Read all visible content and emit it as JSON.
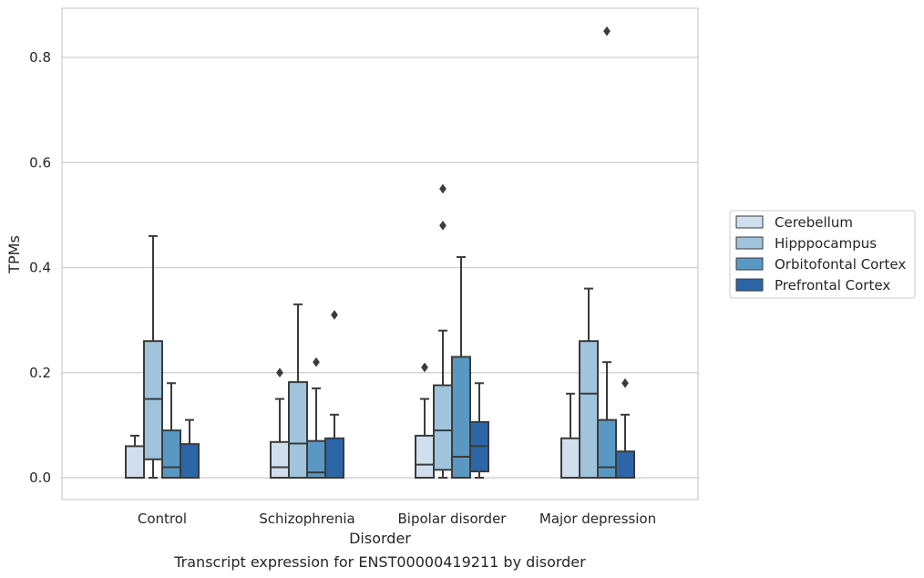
{
  "caption": "Transcript expression for ENST00000419211 by disorder",
  "chart_data": {
    "type": "box",
    "xlabel": "Disorder",
    "ylabel": "TPMs",
    "ylim": [
      -0.04,
      0.9
    ],
    "yticks": [
      0.0,
      0.2,
      0.4,
      0.6,
      0.8
    ],
    "ytick_labels": [
      "0.0",
      "0.2",
      "0.4",
      "0.6",
      "0.8"
    ],
    "grid": "horizontal",
    "legend_position": "right",
    "categories": [
      "Control",
      "Schizophrenia",
      "Bipolar disorder",
      "Major depression"
    ],
    "series": [
      {
        "name": "Cerebellum",
        "color": "#d0dfee",
        "boxes": [
          {
            "min": 0.0,
            "q1": 0.0,
            "median": 0.0,
            "q3": 0.06,
            "max": 0.08,
            "outliers": []
          },
          {
            "min": 0.0,
            "q1": 0.0,
            "median": 0.02,
            "q3": 0.068,
            "max": 0.15,
            "outliers": [
              0.2
            ]
          },
          {
            "min": 0.0,
            "q1": 0.0,
            "median": 0.025,
            "q3": 0.08,
            "max": 0.15,
            "outliers": [
              0.21
            ]
          },
          {
            "min": 0.0,
            "q1": 0.0,
            "median": 0.0,
            "q3": 0.075,
            "max": 0.16,
            "outliers": []
          }
        ]
      },
      {
        "name": "Hipppocampus",
        "color": "#9fc4dc",
        "boxes": [
          {
            "min": 0.0,
            "q1": 0.035,
            "median": 0.15,
            "q3": 0.26,
            "max": 0.46,
            "outliers": []
          },
          {
            "min": 0.0,
            "q1": 0.0,
            "median": 0.065,
            "q3": 0.182,
            "max": 0.33,
            "outliers": []
          },
          {
            "min": 0.0,
            "q1": 0.015,
            "median": 0.09,
            "q3": 0.176,
            "max": 0.28,
            "outliers": [
              0.48,
              0.55
            ]
          },
          {
            "min": 0.0,
            "q1": 0.0,
            "median": 0.16,
            "q3": 0.26,
            "max": 0.36,
            "outliers": []
          }
        ]
      },
      {
        "name": "Orbitofontal Cortex",
        "color": "#5a98c4",
        "boxes": [
          {
            "min": 0.0,
            "q1": 0.0,
            "median": 0.02,
            "q3": 0.09,
            "max": 0.18,
            "outliers": []
          },
          {
            "min": 0.0,
            "q1": 0.0,
            "median": 0.01,
            "q3": 0.07,
            "max": 0.17,
            "outliers": [
              0.22
            ]
          },
          {
            "min": 0.0,
            "q1": 0.0,
            "median": 0.04,
            "q3": 0.23,
            "max": 0.42,
            "outliers": []
          },
          {
            "min": 0.0,
            "q1": 0.0,
            "median": 0.02,
            "q3": 0.11,
            "max": 0.22,
            "outliers": [
              0.85
            ]
          }
        ]
      },
      {
        "name": "Prefrontal Cortex",
        "color": "#2d66a6",
        "boxes": [
          {
            "min": 0.0,
            "q1": 0.0,
            "median": 0.0,
            "q3": 0.064,
            "max": 0.11,
            "outliers": []
          },
          {
            "min": 0.0,
            "q1": 0.0,
            "median": 0.0,
            "q3": 0.075,
            "max": 0.12,
            "outliers": [
              0.31
            ]
          },
          {
            "min": 0.0,
            "q1": 0.012,
            "median": 0.06,
            "q3": 0.106,
            "max": 0.18,
            "outliers": []
          },
          {
            "min": 0.0,
            "q1": 0.0,
            "median": 0.0,
            "q3": 0.05,
            "max": 0.12,
            "outliers": [
              0.18
            ]
          }
        ]
      }
    ]
  }
}
